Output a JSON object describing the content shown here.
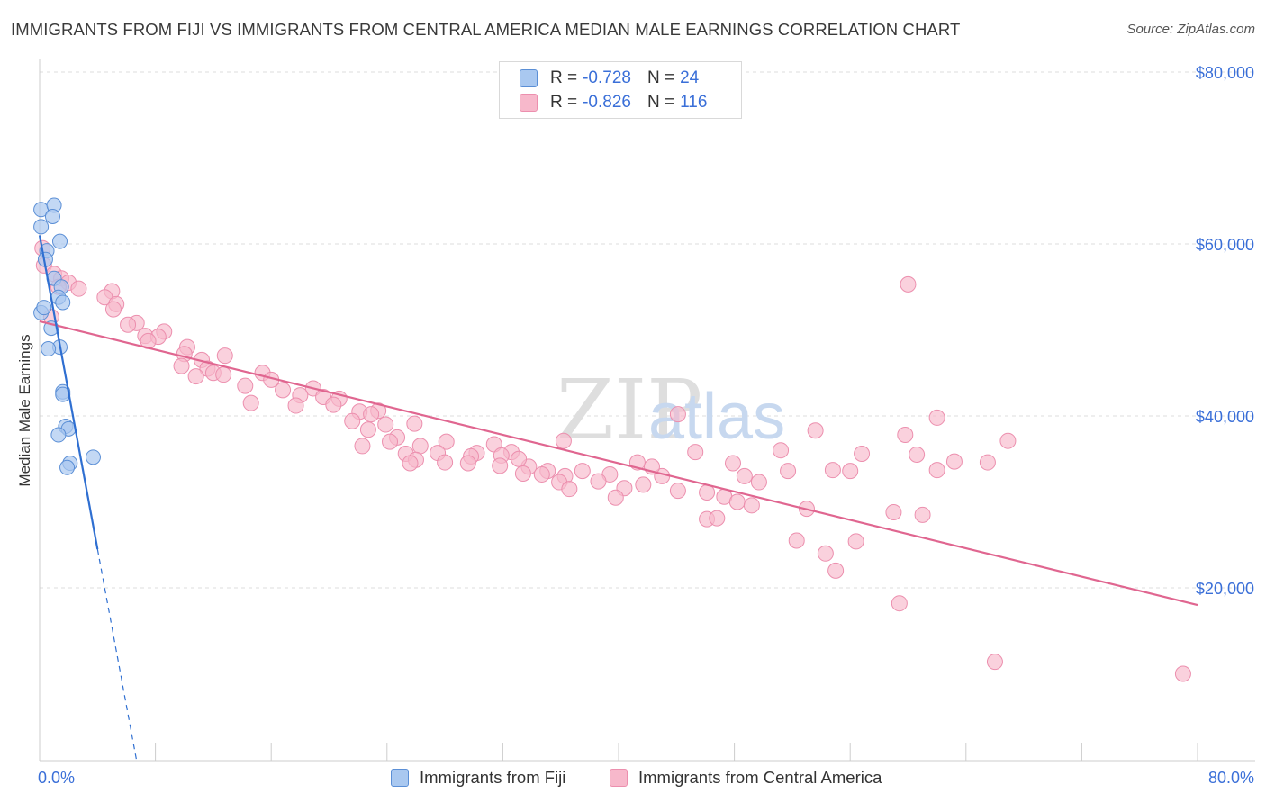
{
  "title": "IMMIGRANTS FROM FIJI VS IMMIGRANTS FROM CENTRAL AMERICA MEDIAN MALE EARNINGS CORRELATION CHART",
  "source": "Source: ZipAtlas.com",
  "watermark": {
    "zip": "ZIP",
    "atlas": "atlas"
  },
  "colors": {
    "fiji_fill": "#a9c8f0",
    "fiji_stroke": "#5b8fd6",
    "fiji_line": "#2f6fd1",
    "ca_fill": "#f7b8cb",
    "ca_stroke": "#ec8fae",
    "ca_line": "#e06690",
    "axis_label": "#3a6fd8",
    "grid": "#dddddd"
  },
  "legend": {
    "rows": [
      {
        "r_label": "R =",
        "r_value": "-0.728",
        "n_label": "N =",
        "n_value": "24"
      },
      {
        "r_label": "R =",
        "r_value": "-0.826",
        "n_label": "N =",
        "n_value": "116"
      }
    ]
  },
  "bottom_legend": {
    "fiji": "Immigrants from Fiji",
    "central_america": "Immigrants from Central America"
  },
  "chart_data": {
    "type": "scatter",
    "ylabel": "Median Male Earnings",
    "xlim": [
      0,
      80
    ],
    "ylim": [
      0,
      80000
    ],
    "x_tick_labels": [
      "0.0%",
      "80.0%"
    ],
    "y_tick_labels": [
      "$20,000",
      "$40,000",
      "$60,000",
      "$80,000"
    ],
    "y_ticks": [
      20000,
      40000,
      60000,
      80000
    ],
    "grid": "horizontal dashed",
    "legend_position": "top-center",
    "series": [
      {
        "name": "Immigrants from Fiji",
        "r": -0.728,
        "n": 24,
        "trend": {
          "x": [
            0.0,
            4.0
          ],
          "y": [
            61000,
            24500
          ],
          "dashed_to": [
            6.7,
            0
          ]
        },
        "points": [
          [
            0.1,
            64000
          ],
          [
            1.0,
            64500
          ],
          [
            0.9,
            63200
          ],
          [
            0.1,
            62000
          ],
          [
            1.4,
            60300
          ],
          [
            0.5,
            59200
          ],
          [
            0.4,
            58200
          ],
          [
            1.0,
            56000
          ],
          [
            1.5,
            55000
          ],
          [
            1.3,
            53800
          ],
          [
            1.6,
            53200
          ],
          [
            0.1,
            52000
          ],
          [
            0.8,
            50200
          ],
          [
            1.4,
            48000
          ],
          [
            0.6,
            47800
          ],
          [
            1.6,
            42800
          ],
          [
            1.6,
            42500
          ],
          [
            1.8,
            38800
          ],
          [
            2.0,
            38500
          ],
          [
            1.3,
            37800
          ],
          [
            2.1,
            34500
          ],
          [
            1.9,
            34000
          ],
          [
            3.7,
            35200
          ],
          [
            0.3,
            52600
          ]
        ]
      },
      {
        "name": "Immigrants from Central America",
        "r": -0.826,
        "n": 116,
        "trend": {
          "x": [
            0.0,
            80.0
          ],
          "y": [
            51000,
            18000
          ]
        },
        "points": [
          [
            0.2,
            59500
          ],
          [
            0.3,
            57500
          ],
          [
            1.0,
            56500
          ],
          [
            1.5,
            56000
          ],
          [
            2.0,
            55500
          ],
          [
            1.3,
            55000
          ],
          [
            2.7,
            54800
          ],
          [
            5.0,
            54500
          ],
          [
            4.5,
            53800
          ],
          [
            5.3,
            53000
          ],
          [
            5.1,
            52400
          ],
          [
            0.8,
            51500
          ],
          [
            6.7,
            50800
          ],
          [
            6.1,
            50600
          ],
          [
            8.6,
            49800
          ],
          [
            7.3,
            49300
          ],
          [
            8.2,
            49200
          ],
          [
            7.5,
            48700
          ],
          [
            10.2,
            48000
          ],
          [
            10.0,
            47200
          ],
          [
            12.8,
            47000
          ],
          [
            11.2,
            46500
          ],
          [
            9.8,
            45800
          ],
          [
            11.6,
            45500
          ],
          [
            12.0,
            45000
          ],
          [
            12.7,
            44800
          ],
          [
            10.8,
            44600
          ],
          [
            15.4,
            45000
          ],
          [
            14.2,
            43500
          ],
          [
            16.0,
            44200
          ],
          [
            16.8,
            43000
          ],
          [
            18.9,
            43200
          ],
          [
            18.0,
            42400
          ],
          [
            17.7,
            41200
          ],
          [
            19.6,
            42200
          ],
          [
            20.7,
            42000
          ],
          [
            14.6,
            41500
          ],
          [
            20.3,
            41300
          ],
          [
            22.1,
            40500
          ],
          [
            23.4,
            40600
          ],
          [
            22.9,
            40200
          ],
          [
            21.6,
            39400
          ],
          [
            23.9,
            39000
          ],
          [
            25.9,
            39100
          ],
          [
            22.7,
            38400
          ],
          [
            24.7,
            37500
          ],
          [
            24.2,
            37000
          ],
          [
            28.1,
            37000
          ],
          [
            26.3,
            36500
          ],
          [
            31.4,
            36700
          ],
          [
            25.3,
            35600
          ],
          [
            27.5,
            35700
          ],
          [
            30.2,
            35700
          ],
          [
            32.6,
            35800
          ],
          [
            29.8,
            35300
          ],
          [
            31.9,
            35400
          ],
          [
            26.0,
            34900
          ],
          [
            25.6,
            34500
          ],
          [
            28.0,
            34600
          ],
          [
            29.6,
            34500
          ],
          [
            31.8,
            34200
          ],
          [
            33.8,
            34100
          ],
          [
            35.1,
            33600
          ],
          [
            37.5,
            33600
          ],
          [
            36.3,
            33000
          ],
          [
            34.7,
            33200
          ],
          [
            33.4,
            33300
          ],
          [
            39.4,
            33200
          ],
          [
            38.6,
            32400
          ],
          [
            35.9,
            32300
          ],
          [
            36.6,
            31500
          ],
          [
            40.4,
            31600
          ],
          [
            39.8,
            30500
          ],
          [
            41.7,
            32000
          ],
          [
            43.0,
            33000
          ],
          [
            45.3,
            35800
          ],
          [
            44.1,
            31300
          ],
          [
            46.1,
            31100
          ],
          [
            47.3,
            30600
          ],
          [
            48.2,
            30000
          ],
          [
            49.7,
            32300
          ],
          [
            48.7,
            33000
          ],
          [
            47.9,
            34500
          ],
          [
            41.3,
            34600
          ],
          [
            51.7,
            33600
          ],
          [
            51.2,
            36000
          ],
          [
            53.6,
            38300
          ],
          [
            54.8,
            33700
          ],
          [
            56.8,
            35600
          ],
          [
            59.8,
            37800
          ],
          [
            60.6,
            35500
          ],
          [
            62.0,
            39800
          ],
          [
            56.0,
            33600
          ],
          [
            52.3,
            25500
          ],
          [
            53.0,
            29200
          ],
          [
            54.3,
            24000
          ],
          [
            56.4,
            25400
          ],
          [
            55.0,
            22000
          ],
          [
            46.1,
            28000
          ],
          [
            44.1,
            40200
          ],
          [
            59.0,
            28800
          ],
          [
            61.0,
            28500
          ],
          [
            60.0,
            55300
          ],
          [
            62.0,
            33700
          ],
          [
            63.2,
            34700
          ],
          [
            65.5,
            34600
          ],
          [
            66.9,
            37100
          ],
          [
            59.4,
            18200
          ],
          [
            66.0,
            11400
          ],
          [
            79.0,
            10000
          ],
          [
            49.2,
            29600
          ],
          [
            46.8,
            28100
          ],
          [
            42.3,
            34100
          ],
          [
            33.1,
            35000
          ],
          [
            36.2,
            37100
          ],
          [
            22.3,
            36500
          ]
        ]
      }
    ]
  }
}
